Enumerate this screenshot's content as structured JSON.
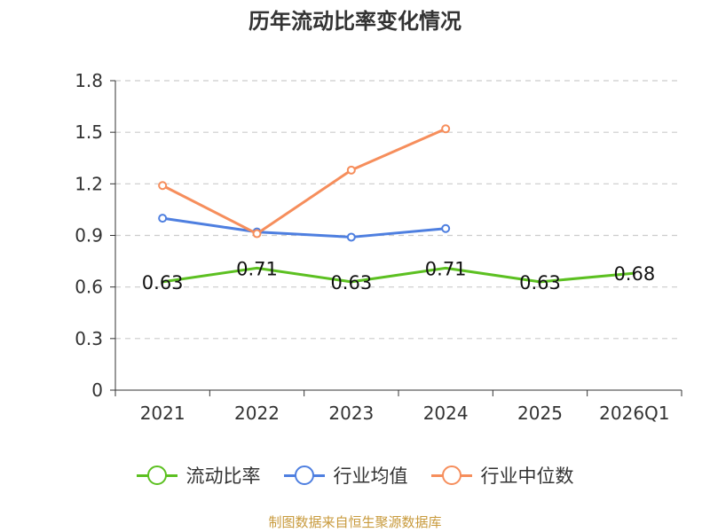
{
  "title": "历年流动比率变化情况",
  "source_note": "制图数据来自恒生聚源数据库",
  "chart_data": {
    "type": "line",
    "categories": [
      "2021",
      "2022",
      "2023",
      "2024",
      "2025",
      "2026Q1"
    ],
    "ylim": [
      0,
      1.8
    ],
    "yticks": [
      "0",
      "0.3",
      "0.6",
      "0.9",
      "1.2",
      "1.5",
      "1.8"
    ],
    "grid": true,
    "legend_position": "bottom",
    "series": [
      {
        "name": "流动比率",
        "color": "#5cc021",
        "values": [
          0.63,
          0.71,
          0.63,
          0.71,
          0.63,
          0.68
        ],
        "labels": [
          "0.63",
          "0.71",
          "0.63",
          "0.71",
          "0.63",
          "0.68"
        ],
        "markers": false
      },
      {
        "name": "行业均值",
        "color": "#4e7fe0",
        "values": [
          1.0,
          0.92,
          0.89,
          0.94,
          null,
          null
        ],
        "markers": true
      },
      {
        "name": "行业中位数",
        "color": "#f68e5c",
        "values": [
          1.19,
          0.91,
          1.28,
          1.52,
          null,
          null
        ],
        "markers": true
      }
    ]
  }
}
